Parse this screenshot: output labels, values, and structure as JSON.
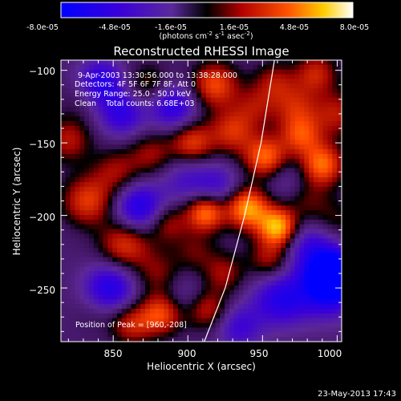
{
  "colorbar": {
    "tick_labels": [
      "-8.0e-05",
      "-4.8e-05",
      "-1.6e-05",
      "1.6e-05",
      "4.8e-05",
      "8.0e-05"
    ],
    "units_parts": [
      "(photons cm",
      "-2",
      " s",
      "-1",
      " asec",
      "-2",
      ")"
    ],
    "min": -8e-05,
    "max": 8e-05
  },
  "footer": {
    "timestamp": "23-May-2013 17:43"
  },
  "chart_data": {
    "type": "heatmap",
    "title": "Reconstructed RHESSI Image",
    "xlabel": "Heliocentric X (arcsec)",
    "ylabel": "Heliocentric Y (arcsec)",
    "xlim": [
      815,
      1003
    ],
    "ylim": [
      -287,
      -93
    ],
    "xticks": [
      850,
      900,
      950,
      1000
    ],
    "yticks": [
      -100,
      -150,
      -200,
      -250
    ],
    "xtick_labels": [
      "850",
      "900",
      "950",
      "1000"
    ],
    "ytick_labels": [
      "−100",
      "−150",
      "−200",
      "−250"
    ],
    "annotations": [
      "9-Apr-2003 13:30:56.000 to 13:38:28.000",
      "Detectors: 4F 5F 6F 7F 8F, Att 0",
      "Energy Range: 25.0 - 50.0 keV",
      "Clean    Total counts: 6.68E+03"
    ],
    "peak_label": "Position of Peak = [960,-208]",
    "peak": [
      960,
      -208
    ],
    "limb": [
      [
        911,
        -287
      ],
      [
        925,
        -250
      ],
      [
        938,
        -200
      ],
      [
        949,
        -150
      ],
      [
        958,
        -93
      ]
    ],
    "blobs": [
      [
        820,
        -148,
        0.4,
        11
      ],
      [
        826,
        -120,
        0.1,
        11
      ],
      [
        833,
        -190,
        0.55,
        12
      ],
      [
        838,
        -268,
        0.1,
        10
      ],
      [
        842,
        -108,
        -0.55,
        11
      ],
      [
        848,
        -250,
        -0.6,
        12
      ],
      [
        852,
        -170,
        0.35,
        11
      ],
      [
        856,
        -130,
        -0.5,
        11
      ],
      [
        858,
        -220,
        0.55,
        12
      ],
      [
        862,
        -275,
        0.45,
        10
      ],
      [
        868,
        -195,
        -0.65,
        12
      ],
      [
        873,
        -110,
        0.3,
        11
      ],
      [
        876,
        -158,
        0.35,
        11
      ],
      [
        880,
        -240,
        0.3,
        11
      ],
      [
        882,
        -268,
        0.6,
        10
      ],
      [
        886,
        -205,
        0.4,
        10
      ],
      [
        890,
        -125,
        -0.55,
        11
      ],
      [
        898,
        -175,
        -0.3,
        12
      ],
      [
        898,
        -255,
        -0.2,
        11
      ],
      [
        903,
        -150,
        0.55,
        10
      ],
      [
        905,
        -225,
        0.25,
        10
      ],
      [
        912,
        -198,
        0.75,
        9
      ],
      [
        913,
        -265,
        0.45,
        10
      ],
      [
        918,
        -110,
        0.6,
        11
      ],
      [
        920,
        -180,
        -0.35,
        11
      ],
      [
        924,
        -240,
        0.35,
        10
      ],
      [
        930,
        -142,
        0.5,
        11
      ],
      [
        934,
        -277,
        -0.4,
        11
      ],
      [
        940,
        -195,
        0.85,
        10
      ],
      [
        945,
        -125,
        0.3,
        10
      ],
      [
        952,
        -160,
        0.7,
        10
      ],
      [
        955,
        -230,
        0.4,
        10
      ],
      [
        958,
        -108,
        0.35,
        10
      ],
      [
        960,
        -208,
        0.9,
        9
      ],
      [
        962,
        -258,
        -0.55,
        13
      ],
      [
        966,
        -175,
        -0.2,
        11
      ],
      [
        972,
        -125,
        0.4,
        11
      ],
      [
        976,
        -145,
        0.55,
        10
      ],
      [
        980,
        -190,
        0.25,
        11
      ],
      [
        984,
        -222,
        -0.45,
        13
      ],
      [
        986,
        -102,
        0.45,
        10
      ],
      [
        990,
        -165,
        0.7,
        10
      ],
      [
        993,
        -250,
        -0.7,
        14
      ],
      [
        998,
        -240,
        -0.95,
        10
      ],
      [
        998,
        -205,
        0.25,
        11
      ],
      [
        1000,
        -130,
        0.4,
        11
      ]
    ]
  }
}
